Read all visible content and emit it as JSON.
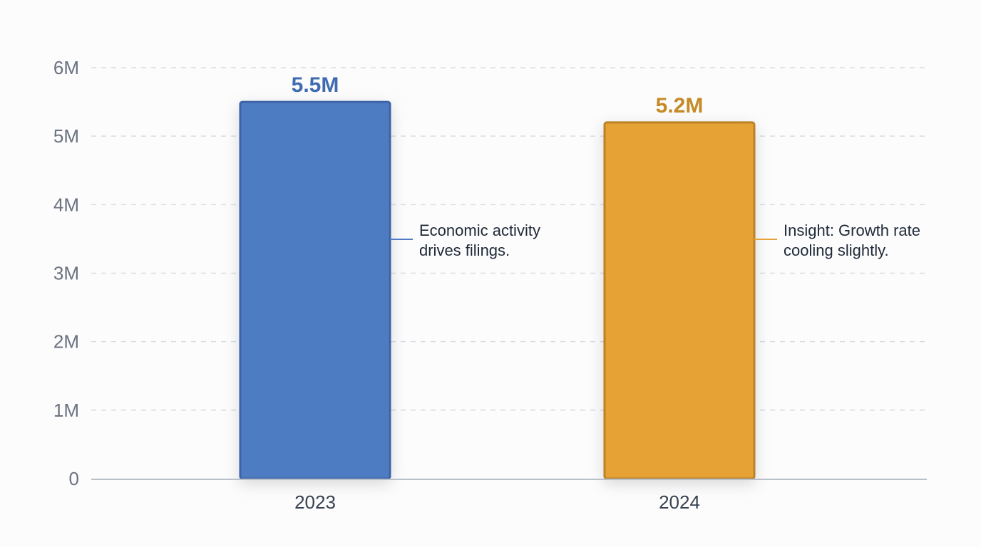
{
  "chart_data": {
    "type": "bar",
    "title": "",
    "xlabel": "",
    "ylabel": "",
    "categories": [
      "2023",
      "2024"
    ],
    "values": [
      5.5,
      5.2
    ],
    "value_labels": [
      "5.5M",
      "5.2M"
    ],
    "ylim": [
      0,
      6
    ],
    "yticks": [
      0,
      1,
      2,
      3,
      4,
      5,
      6
    ],
    "ytick_labels": [
      "0",
      "1M",
      "2M",
      "3M",
      "4M",
      "5M",
      "6M"
    ],
    "grid": true,
    "colors": {
      "bar_fill": [
        "#4e7bc3",
        "#e6a236"
      ],
      "bar_stroke": [
        "#3c64a6",
        "#b98228"
      ],
      "value_label": [
        "#3f6cb0",
        "#c48a25"
      ],
      "grid": "#d8dce2",
      "axis": "#b9c0ca"
    },
    "annotations": [
      {
        "category": "2023",
        "lines": [
          "Economic activity",
          "drives filings."
        ],
        "color": "#4e7bc3"
      },
      {
        "category": "2024",
        "lines": [
          "Insight: Growth rate",
          "cooling slightly."
        ],
        "color": "#e6a236"
      }
    ]
  }
}
